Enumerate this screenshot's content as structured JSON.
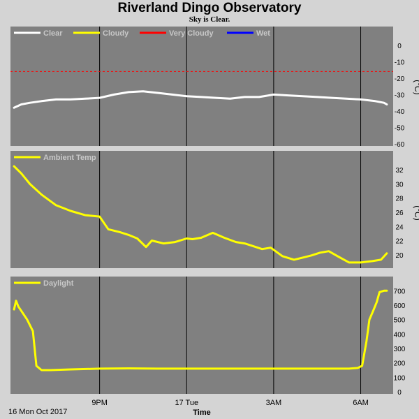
{
  "header": {
    "title": "Riverland Dingo Observatory",
    "subtitle": "Sky is Clear."
  },
  "footer": {
    "date_label": "16 Mon Oct 2017",
    "time_axis_label": "Time"
  },
  "colors": {
    "background": "#d4d4d4",
    "panel": "#808080",
    "clear": "#ffffff",
    "cloudy": "#ffff00",
    "very_cloudy": "#ff0000",
    "wet": "#0000ff",
    "ambient": "#ffff00",
    "daylight": "#ffff00"
  },
  "chart_data": [
    {
      "type": "line",
      "id": "sky",
      "ylim": [
        -60,
        5
      ],
      "yticks": [
        0,
        -10,
        -20,
        -30,
        -40,
        -50,
        -60
      ],
      "yunit": "(°C)",
      "xticks": [
        {
          "label": "9PM",
          "x": 21.0
        },
        {
          "label": "17 Tue",
          "x": 24.0
        },
        {
          "label": "3AM",
          "x": 27.0
        },
        {
          "label": "6AM",
          "x": 30.0
        }
      ],
      "xlim": [
        18.0,
        30.95
      ],
      "legend": [
        {
          "name": "Clear",
          "color": "#ffffff"
        },
        {
          "name": "Cloudy",
          "color": "#ffff00"
        },
        {
          "name": "Very Cloudy",
          "color": "#ff0000"
        },
        {
          "name": "Wet",
          "color": "#0000ff"
        }
      ],
      "threshold": {
        "name": "Very Cloudy",
        "value": -16,
        "color": "#ff0000",
        "dashed": true
      },
      "series": [
        {
          "name": "Clear",
          "color": "#ffffff",
          "x": [
            18.05,
            18.3,
            18.6,
            19.0,
            19.5,
            20.0,
            20.5,
            21.0,
            21.5,
            22.0,
            22.5,
            23.0,
            23.5,
            24.0,
            24.5,
            25.0,
            25.5,
            26.0,
            26.5,
            27.0,
            27.5,
            28.0,
            28.5,
            29.0,
            29.5,
            30.0,
            30.5,
            30.8,
            30.9
          ],
          "y": [
            -38,
            -36,
            -35,
            -34,
            -33,
            -33,
            -32.5,
            -32,
            -30,
            -28.5,
            -28,
            -29,
            -30,
            -31,
            -31.5,
            -32,
            -32.5,
            -31.5,
            -31.5,
            -30,
            -30.5,
            -31,
            -31.5,
            -32,
            -32.5,
            -33,
            -34,
            -35,
            -36
          ]
        }
      ]
    },
    {
      "type": "line",
      "id": "ambient",
      "ylim": [
        18.5,
        33.5
      ],
      "yticks": [
        32,
        30,
        28,
        26,
        24,
        22,
        20
      ],
      "yunit": "(°C)",
      "xticks": [
        {
          "label": "9PM",
          "x": 21.0
        },
        {
          "label": "17 Tue",
          "x": 24.0
        },
        {
          "label": "3AM",
          "x": 27.0
        },
        {
          "label": "6AM",
          "x": 30.0
        }
      ],
      "xlim": [
        18.0,
        30.95
      ],
      "legend": [
        {
          "name": "Ambient Temp",
          "color": "#ffff00"
        }
      ],
      "series": [
        {
          "name": "Ambient Temp",
          "color": "#ffff00",
          "x": [
            18.05,
            18.3,
            18.6,
            19.0,
            19.5,
            20.0,
            20.5,
            21.0,
            21.3,
            21.7,
            22.0,
            22.3,
            22.6,
            22.8,
            23.2,
            23.6,
            24.0,
            24.2,
            24.5,
            24.9,
            25.3,
            25.7,
            26.0,
            26.3,
            26.6,
            26.9,
            27.3,
            27.7,
            28.0,
            28.3,
            28.6,
            28.9,
            29.2,
            29.6,
            30.0,
            30.4,
            30.7,
            30.9
          ],
          "y": [
            32.5,
            31.5,
            30,
            28.5,
            27,
            26.2,
            25.6,
            25.4,
            23.6,
            23.2,
            22.8,
            22.3,
            21.1,
            22,
            21.6,
            21.8,
            22.3,
            22.2,
            22.4,
            23.1,
            22.4,
            21.8,
            21.6,
            21.2,
            20.8,
            21,
            19.8,
            19.3,
            19.6,
            19.9,
            20.3,
            20.5,
            19.8,
            18.9,
            18.9,
            19.1,
            19.3,
            20.2
          ]
        }
      ]
    },
    {
      "type": "line",
      "id": "daylight",
      "ylim": [
        0,
        740
      ],
      "yticks": [
        700,
        600,
        500,
        400,
        300,
        200,
        100,
        0
      ],
      "xticks": [
        {
          "label": "9PM",
          "x": 21.0
        },
        {
          "label": "17 Tue",
          "x": 24.0
        },
        {
          "label": "3AM",
          "x": 27.0
        },
        {
          "label": "6AM",
          "x": 30.0
        }
      ],
      "xlim": [
        18.0,
        30.95
      ],
      "legend": [
        {
          "name": "Daylight",
          "color": "#ffff00"
        }
      ],
      "series": [
        {
          "name": "Daylight",
          "color": "#ffff00",
          "x": [
            18.05,
            18.12,
            18.2,
            18.3,
            18.5,
            18.7,
            18.82,
            19.0,
            19.3,
            20.0,
            21.0,
            22.0,
            23.0,
            24.0,
            25.0,
            26.0,
            27.0,
            28.0,
            29.0,
            29.6,
            29.9,
            30.05,
            30.2,
            30.3,
            30.45,
            30.55,
            30.65,
            30.8,
            30.9
          ],
          "y": [
            570,
            630,
            590,
            560,
            500,
            420,
            180,
            150,
            150,
            155,
            160,
            162,
            160,
            160,
            160,
            160,
            160,
            160,
            160,
            160,
            165,
            180,
            350,
            500,
            570,
            620,
            690,
            700,
            700
          ]
        }
      ]
    }
  ]
}
